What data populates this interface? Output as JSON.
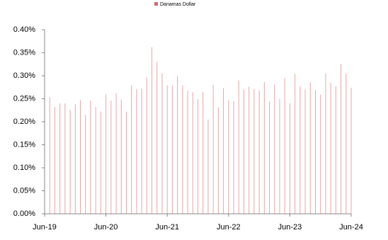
{
  "chart_data": {
    "type": "bar",
    "categories": [
      "Jun-19",
      null,
      null,
      null,
      null,
      null,
      null,
      null,
      null,
      null,
      null,
      null,
      "Jun-20",
      null,
      null,
      null,
      null,
      null,
      null,
      null,
      null,
      null,
      null,
      null,
      "Jun-21",
      null,
      null,
      null,
      null,
      null,
      null,
      null,
      null,
      null,
      null,
      null,
      "Jun-22",
      null,
      null,
      null,
      null,
      null,
      null,
      null,
      null,
      null,
      null,
      null,
      "Jun-23",
      null,
      null,
      null,
      null,
      null,
      null,
      null,
      null,
      null,
      null,
      null,
      "Jun-24"
    ],
    "series": [
      {
        "name": "Danamas Dollar",
        "color": "#d9696b",
        "values": [
          null,
          0.253,
          0.232,
          0.24,
          0.24,
          0.226,
          0.238,
          0.247,
          0.215,
          0.246,
          0.232,
          0.222,
          0.26,
          0.246,
          0.262,
          0.248,
          0.222,
          0.279,
          0.271,
          0.272,
          0.296,
          0.362,
          0.33,
          0.305,
          0.279,
          0.279,
          0.299,
          0.279,
          0.267,
          0.264,
          0.249,
          0.265,
          0.205,
          0.28,
          0.231,
          0.273,
          0.247,
          0.245,
          0.29,
          0.27,
          0.276,
          0.271,
          0.268,
          0.286,
          0.244,
          0.281,
          0.25,
          0.295,
          0.24,
          0.304,
          0.277,
          0.27,
          0.286,
          0.269,
          0.259,
          0.305,
          0.285,
          0.277,
          0.326,
          0.305,
          0.274
        ]
      }
    ],
    "ylim": [
      0,
      0.4
    ],
    "yticks": [
      {
        "value": 0,
        "label": "0.00%"
      },
      {
        "value": 0.05,
        "label": "0.05%"
      },
      {
        "value": 0.1,
        "label": "0.10%"
      },
      {
        "value": 0.15,
        "label": "0.15%"
      },
      {
        "value": 0.2,
        "label": "0.20%"
      },
      {
        "value": 0.25,
        "label": "0.25%"
      },
      {
        "value": 0.3,
        "label": "0.30%"
      },
      {
        "value": 0.35,
        "label": "0.35%"
      },
      {
        "value": 0.4,
        "label": "0.40%"
      }
    ],
    "legend": "top"
  }
}
